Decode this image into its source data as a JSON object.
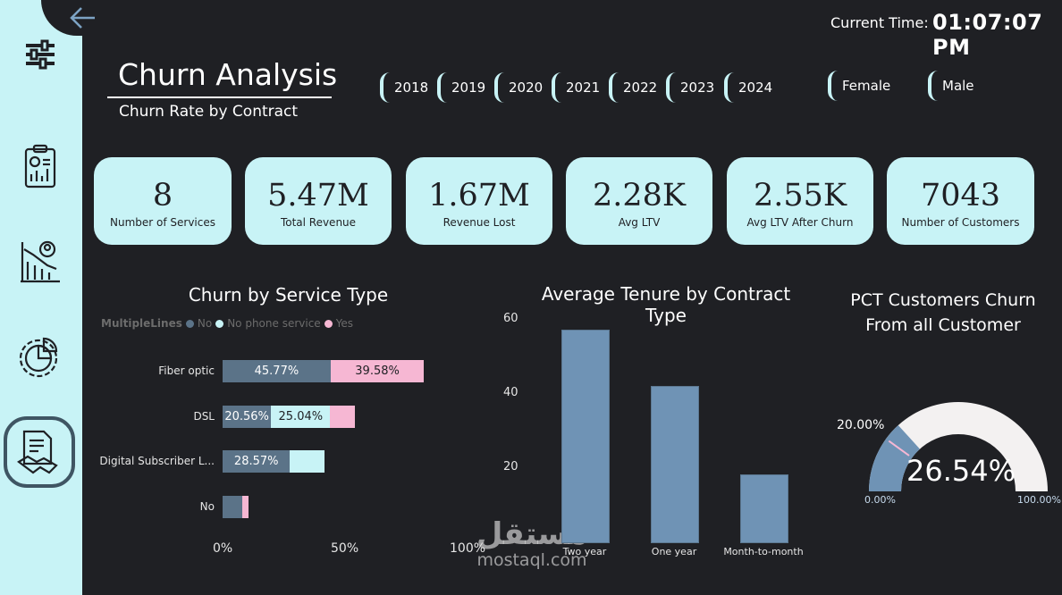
{
  "header": {
    "title": "Churn Analysis",
    "subtitle": "Churn Rate by Contract",
    "time_label": "Current Time:",
    "time_value": "01:07:07 PM"
  },
  "slicers": {
    "years": [
      "2018",
      "2019",
      "2020",
      "2021",
      "2022",
      "2023",
      "2024"
    ],
    "genders": [
      "Female",
      "Male"
    ]
  },
  "kpis": [
    {
      "value": "8",
      "label": "Number of Services"
    },
    {
      "value": "5.47M",
      "label": "Total Revenue"
    },
    {
      "value": "1.67M",
      "label": "Revenue Lost"
    },
    {
      "value": "2.28K",
      "label": "Avg LTV"
    },
    {
      "value": "2.55K",
      "label": "Avg LTV After Churn"
    },
    {
      "value": "7043",
      "label": "Number of Customers"
    }
  ],
  "sidebar": {
    "icons": [
      "sliders-icon",
      "report-icon",
      "chart-user-icon",
      "pie-gear-icon",
      "contract-handshake-icon"
    ]
  },
  "colors": {
    "sidebar": "#c8f3f6",
    "background": "#1f2024",
    "no": "#5b7388",
    "no_phone": "#c8f3f6",
    "yes": "#f6b7d3",
    "bar": "#6f93b5"
  },
  "chart_data": [
    {
      "type": "bar",
      "orientation": "horizontal",
      "stacked": true,
      "title": "Churn by Service Type",
      "legend_title": "MultipleLines",
      "categories": [
        "Fiber optic",
        "DSL",
        "Digital Subscriber L...",
        "No"
      ],
      "series": [
        {
          "name": "No",
          "values": [
            45.77,
            20.56,
            28.57,
            8.5
          ],
          "labels": [
            "45.77%",
            "20.56%",
            "28.57%",
            ""
          ]
        },
        {
          "name": "No phone service",
          "values": [
            0,
            25.04,
            14.5,
            0
          ],
          "labels": [
            "",
            "25.04%",
            "",
            ""
          ]
        },
        {
          "name": "Yes",
          "values": [
            39.58,
            10.5,
            0,
            2.5
          ],
          "labels": [
            "39.58%",
            "",
            "",
            ""
          ]
        }
      ],
      "xticks": [
        "0%",
        "50%",
        "100%"
      ],
      "xlim": [
        0,
        100
      ]
    },
    {
      "type": "bar",
      "title": "Average Tenure by Contract Type",
      "categories": [
        "Two year",
        "One year",
        "Month-to-month"
      ],
      "values": [
        57,
        42,
        18
      ],
      "yticks": [
        "60",
        "40",
        "20"
      ],
      "ylim": [
        0,
        60
      ]
    },
    {
      "type": "gauge",
      "title": "PCT Customers Churn From all Customer",
      "value": 26.54,
      "value_label": "26.54%",
      "target": 20.0,
      "target_label": "20.00%",
      "min_label": "0.00%",
      "max_label": "100.00%"
    }
  ],
  "watermark": {
    "arabic": "مستقل",
    "latin": "mostaql.com"
  }
}
